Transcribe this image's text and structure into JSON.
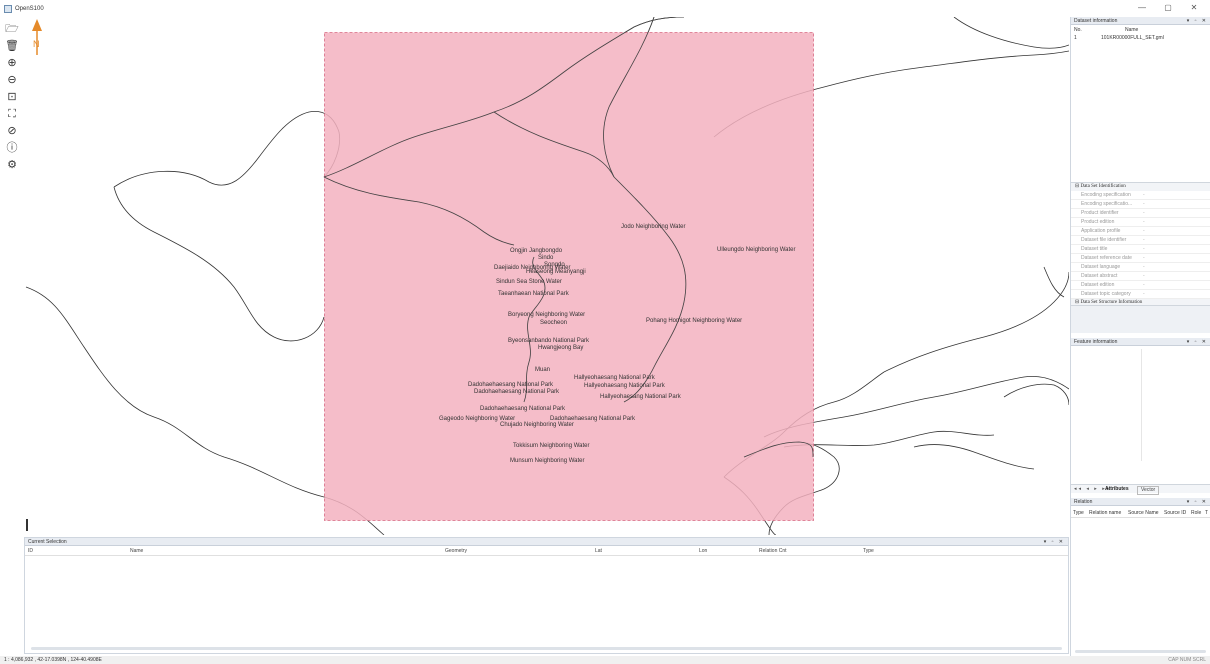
{
  "window": {
    "title": "OpenS100",
    "controls": [
      "—",
      "▢",
      "✕"
    ]
  },
  "toolbar": [
    {
      "name": "open-folder-icon",
      "glyph": "🗁"
    },
    {
      "name": "trash-icon",
      "glyph": "🗑"
    },
    {
      "name": "zoom-in-icon",
      "glyph": "⊕"
    },
    {
      "name": "zoom-out-icon",
      "glyph": "⊖"
    },
    {
      "name": "zoom-area-icon",
      "glyph": "⊡"
    },
    {
      "name": "fit-extent-icon",
      "glyph": "⛶"
    },
    {
      "name": "no-entry-icon",
      "glyph": "⊘"
    },
    {
      "name": "info-icon",
      "glyph": "ⓘ"
    },
    {
      "name": "gear-icon",
      "glyph": "⚙"
    }
  ],
  "map": {
    "north_label": "N",
    "places": [
      "Jodo Neighboring Water",
      "Ulleungdo Neighboring Water",
      "Ongjin Jangbongdo",
      "Sindo",
      "Songdo",
      "Heaseong Meanyangji",
      "Daejiaido Neighboring Water",
      "Sindun Sea Stone Water",
      "Taeanhaean National Park",
      "Boryeong Neighboring Water",
      "Seocheon",
      "Pohang Homigot Neighboring Water",
      "Byeonsanbando National Park",
      "Hwangjeong Bay",
      "Muan",
      "Dadohaehaesang National Park",
      "Dadohaehaesang National Park",
      "Hallyeohaesang National Park",
      "Hallyeohaesang National Park",
      "Hallyeohaesang National Park",
      "Dadohaehaesang National Park",
      "Dadohaehaesang National Park",
      "Gageodo Neighboring Water",
      "Chujado Neighboring Water",
      "Tokkisum Neighboring Water",
      "Munsum Neighboring Water"
    ]
  },
  "current_selection": {
    "title": "Current Selection",
    "columns": [
      "ID",
      "Name",
      "Geometry",
      "Lat",
      "Lon",
      "Relation Cnt",
      "Type"
    ]
  },
  "dataset_info": {
    "title": "Dataset information",
    "columns": [
      "No.",
      "Name"
    ],
    "rows": [
      {
        "no": "1",
        "name": "101KR00000FULL_SET.gml"
      }
    ]
  },
  "properties": {
    "section1": "Data Set Identification",
    "rows": [
      {
        "label": "Encoding specification",
        "value": "-"
      },
      {
        "label": "Encoding specificatio...",
        "value": "-"
      },
      {
        "label": "Product identifier",
        "value": "-"
      },
      {
        "label": "Product edition",
        "value": "-"
      },
      {
        "label": "Application profile",
        "value": "-"
      },
      {
        "label": "Dataset file identifier",
        "value": "-"
      },
      {
        "label": "Dataset title",
        "value": "-"
      },
      {
        "label": "Dataset reference date",
        "value": "-"
      },
      {
        "label": "Dataset language",
        "value": "-"
      },
      {
        "label": "Dataset abstract",
        "value": "-"
      },
      {
        "label": "Dataset edition",
        "value": "-"
      },
      {
        "label": "Dataset topic category",
        "value": "-"
      }
    ],
    "section2": "Data Set Structure Information"
  },
  "feature_info": {
    "title": "Feature information",
    "nav": "◂◂ ◂ ▸ ▸▸",
    "tabs": [
      "Attributes",
      "Vector"
    ]
  },
  "relation": {
    "title": "Relation",
    "columns": [
      "Type",
      "Relation name",
      "Source Name",
      "Source ID",
      "Role",
      "T"
    ]
  },
  "panel_controls": "▾ ▫ ✕",
  "status": {
    "coords": "1 : 4,086,932 , 42-17.0398N , 124-40.4908E",
    "keys": "CAP  NUM  SCRL"
  },
  "colors": {
    "overlay_fill": "#f3b1bf",
    "overlay_stroke": "#d86a82",
    "coastline": "#333333"
  }
}
